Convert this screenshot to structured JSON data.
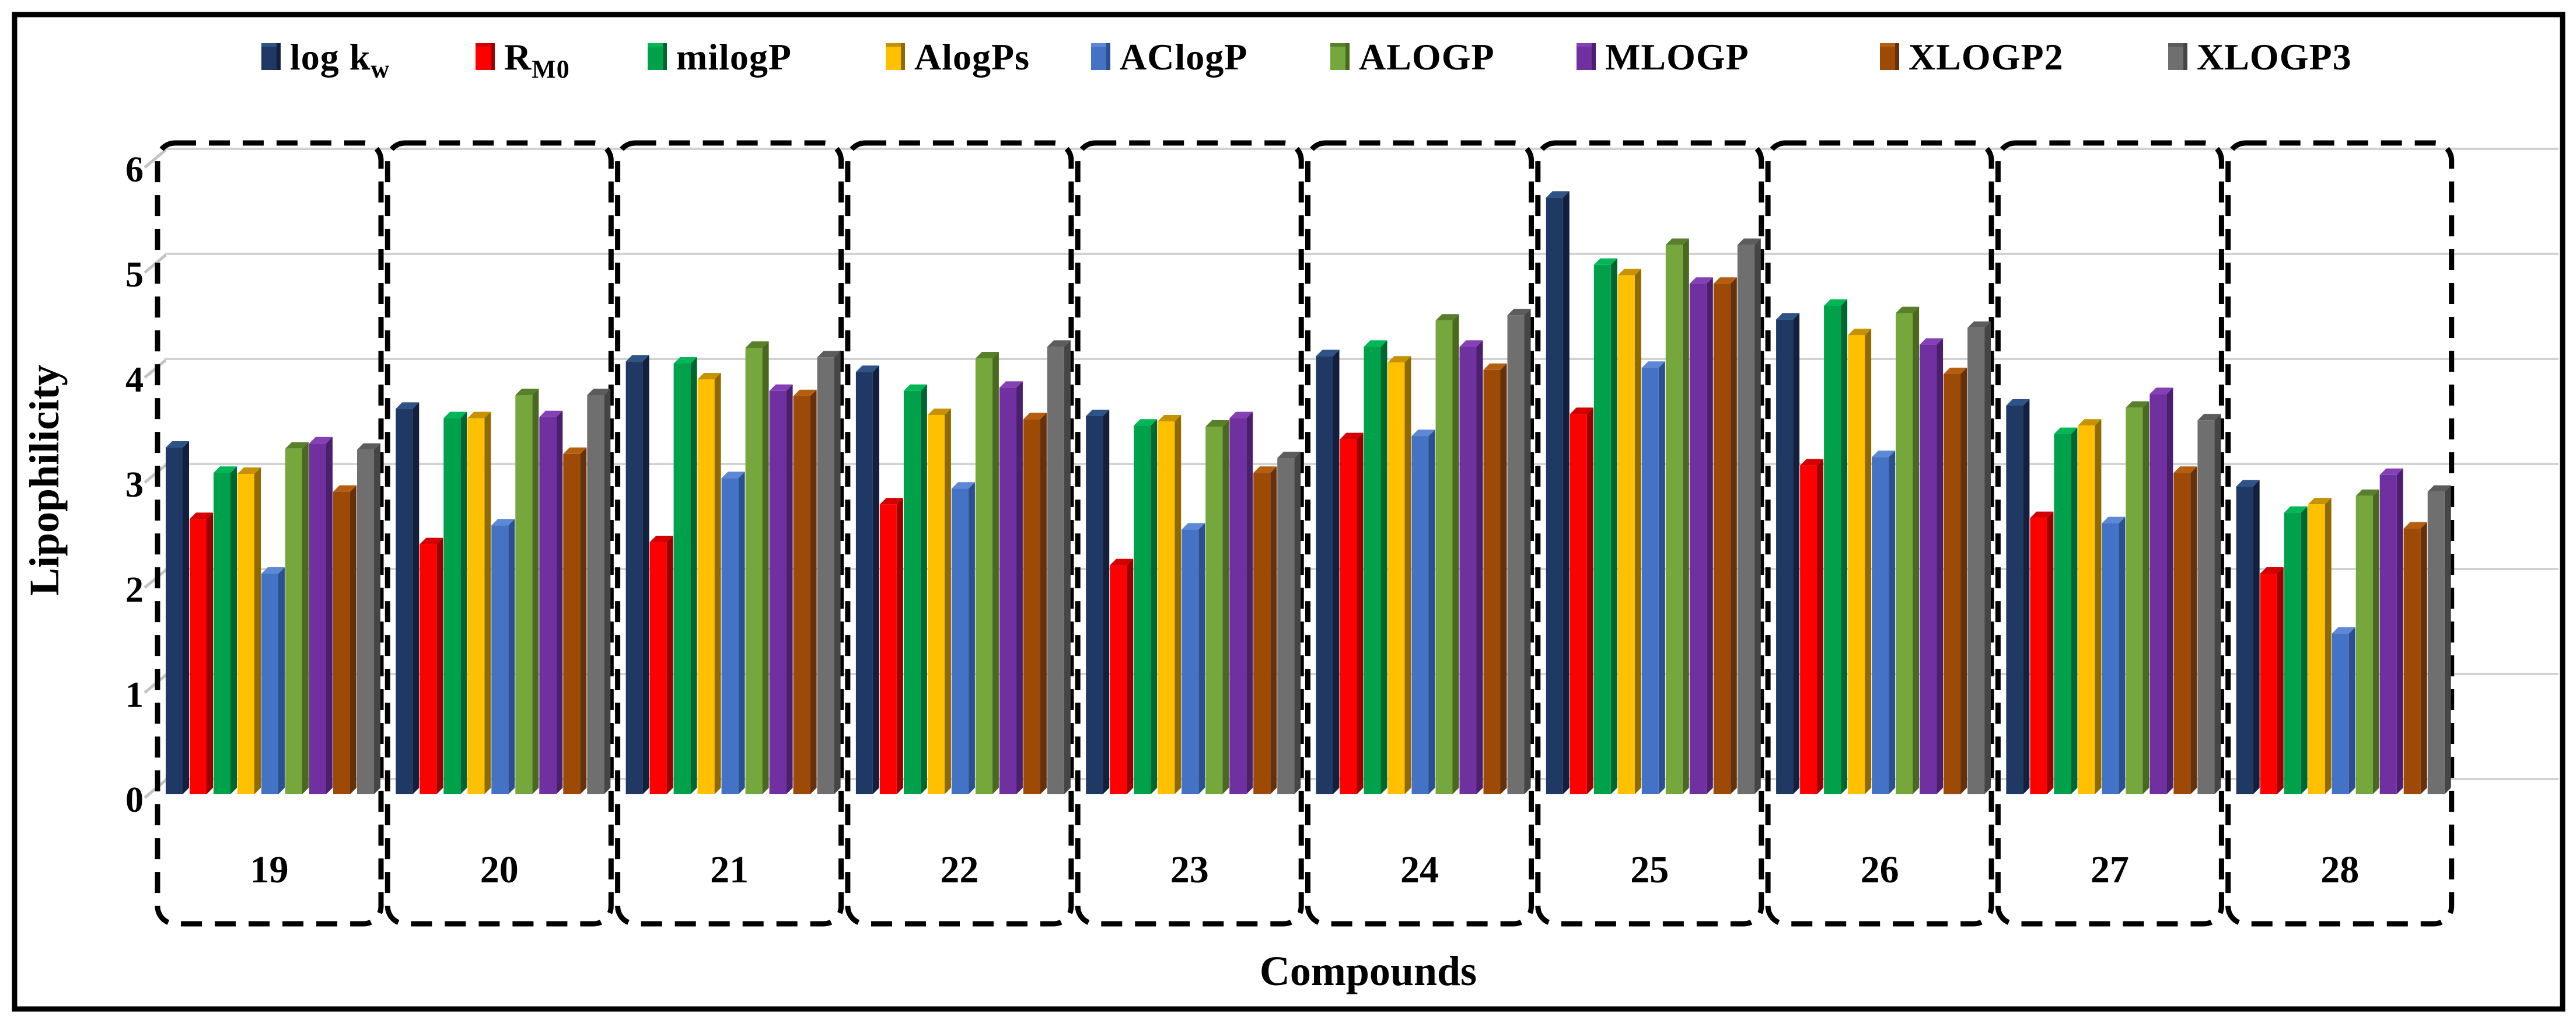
{
  "figure": {
    "border_color": "#000000",
    "background": "#ffffff"
  },
  "chart_data": {
    "type": "bar",
    "title": "",
    "xlabel": "Compounds",
    "ylabel": "Lipophilicity",
    "ylim": [
      0,
      6
    ],
    "yticks": [
      "0",
      "1",
      "2",
      "3",
      "4",
      "5",
      "6"
    ],
    "grid": true,
    "gridline_color": "#d2d2d2",
    "legend_position": "top",
    "group_box_style": "dashed",
    "categories": [
      "19",
      "20",
      "21",
      "22",
      "23",
      "24",
      "25",
      "26",
      "27",
      "28"
    ],
    "series": [
      {
        "name": "log kw",
        "label_main": "log k",
        "label_sub": "w",
        "color": "#1F3864",
        "top_color": "#2E5387",
        "side_color": "#121F3D",
        "values": [
          3.3,
          3.67,
          4.12,
          4.02,
          3.6,
          4.17,
          5.68,
          4.52,
          3.7,
          2.93
        ]
      },
      {
        "name": "RM0",
        "label_main": "R",
        "label_sub": "M0",
        "color": "#FE0000",
        "top_color": "#D40000",
        "side_color": "#9B0000",
        "values": [
          2.62,
          2.38,
          2.4,
          2.76,
          2.18,
          3.38,
          3.62,
          3.13,
          2.63,
          2.1
        ]
      },
      {
        "name": "milogP",
        "label_main": "milogP",
        "label_sub": "",
        "color": "#00A14B",
        "top_color": "#00B757",
        "side_color": "#006630",
        "values": [
          3.06,
          3.58,
          4.1,
          3.84,
          3.51,
          4.26,
          5.04,
          4.65,
          3.43,
          2.68
        ]
      },
      {
        "name": "AlogPs",
        "label_main": "AlogPs",
        "label_sub": "",
        "color": "#FFC000",
        "top_color": "#C69200",
        "side_color": "#8F6A00",
        "values": [
          3.05,
          3.58,
          3.95,
          3.61,
          3.55,
          4.11,
          4.94,
          4.37,
          3.51,
          2.76
        ]
      },
      {
        "name": "AClogP",
        "label_main": "AClogP",
        "label_sub": "",
        "color": "#4472C4",
        "top_color": "#5D88D6",
        "side_color": "#2B4F93",
        "values": [
          2.1,
          2.56,
          3.01,
          2.91,
          2.52,
          3.41,
          4.06,
          3.21,
          2.58,
          1.53
        ]
      },
      {
        "name": "ALOGP",
        "label_main": "ALOGP",
        "label_sub": "",
        "color": "#76A73C",
        "top_color": "#587F2A",
        "side_color": "#49691F",
        "values": [
          3.29,
          3.8,
          4.25,
          4.15,
          3.5,
          4.51,
          5.23,
          4.58,
          3.68,
          2.84
        ]
      },
      {
        "name": "MLOGP",
        "label_main": "MLOGP",
        "label_sub": "",
        "color": "#7030A0",
        "top_color": "#8440B4",
        "side_color": "#4B1F6E",
        "values": [
          3.34,
          3.59,
          3.84,
          3.87,
          3.58,
          4.26,
          4.86,
          4.28,
          3.81,
          3.04
        ]
      },
      {
        "name": "XLOGP2",
        "label_main": "XLOGP2",
        "label_sub": "",
        "color": "#9C4A06",
        "top_color": "#B55E10",
        "side_color": "#66300A",
        "values": [
          2.88,
          3.24,
          3.79,
          3.57,
          3.06,
          4.04,
          4.86,
          4.0,
          3.06,
          2.53
        ]
      },
      {
        "name": "XLOGP3",
        "label_main": "XLOGP3",
        "label_sub": "",
        "color": "#6F6F6F",
        "top_color": "#5C5C5C",
        "side_color": "#454545",
        "values": [
          3.28,
          3.8,
          4.16,
          4.26,
          3.2,
          4.56,
          5.23,
          4.44,
          3.56,
          2.88
        ]
      }
    ]
  }
}
